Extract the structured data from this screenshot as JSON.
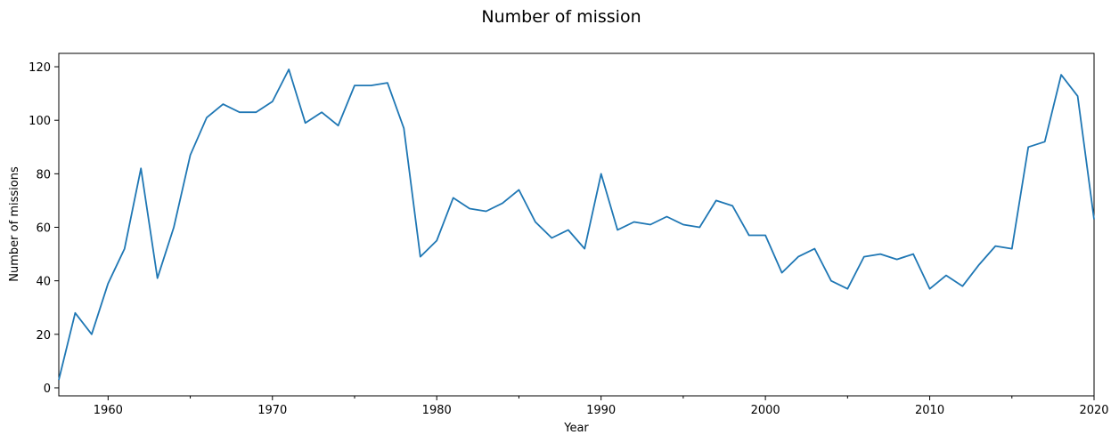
{
  "chart_data": {
    "type": "line",
    "title": "Number of mission",
    "xlabel": "Year",
    "ylabel": "Number of missions",
    "xlim": [
      1957,
      2020
    ],
    "ylim": [
      -3,
      125
    ],
    "x_ticks": [
      "1960",
      "1970",
      "1980",
      "1990",
      "2000",
      "2010",
      "2020"
    ],
    "y_ticks": [
      "0",
      "20",
      "40",
      "60",
      "80",
      "100",
      "120"
    ],
    "line_color": "#1f77b4",
    "grid": false,
    "x": [
      1957,
      1958,
      1959,
      1960,
      1961,
      1962,
      1963,
      1964,
      1965,
      1966,
      1967,
      1968,
      1969,
      1970,
      1971,
      1972,
      1973,
      1974,
      1975,
      1976,
      1977,
      1978,
      1979,
      1980,
      1981,
      1982,
      1983,
      1984,
      1985,
      1986,
      1987,
      1988,
      1989,
      1990,
      1991,
      1992,
      1993,
      1994,
      1995,
      1996,
      1997,
      1998,
      1999,
      2000,
      2001,
      2002,
      2003,
      2004,
      2005,
      2006,
      2007,
      2008,
      2009,
      2010,
      2011,
      2012,
      2013,
      2014,
      2015,
      2016,
      2017,
      2018,
      2019,
      2020
    ],
    "values": [
      3,
      28,
      20,
      39,
      52,
      82,
      41,
      60,
      87,
      101,
      106,
      103,
      103,
      107,
      119,
      99,
      103,
      98,
      113,
      113,
      114,
      97,
      49,
      55,
      71,
      67,
      66,
      69,
      74,
      62,
      56,
      59,
      52,
      80,
      59,
      62,
      61,
      64,
      61,
      60,
      70,
      68,
      57,
      57,
      43,
      49,
      52,
      40,
      37,
      49,
      50,
      48,
      50,
      37,
      42,
      38,
      46,
      53,
      52,
      90,
      92,
      117,
      109,
      63
    ]
  }
}
